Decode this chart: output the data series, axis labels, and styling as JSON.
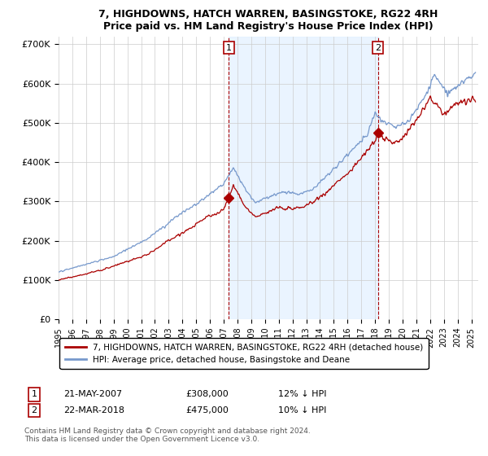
{
  "title": "7, HIGHDOWNS, HATCH WARREN, BASINGSTOKE, RG22 4RH",
  "subtitle": "Price paid vs. HM Land Registry's House Price Index (HPI)",
  "legend_line1": "7, HIGHDOWNS, HATCH WARREN, BASINGSTOKE, RG22 4RH (detached house)",
  "legend_line2": "HPI: Average price, detached house, Basingstoke and Deane",
  "footnote": "Contains HM Land Registry data © Crown copyright and database right 2024.\nThis data is licensed under the Open Government Licence v3.0.",
  "annotation1_date": "21-MAY-2007",
  "annotation1_price": "£308,000",
  "annotation1_hpi": "12% ↓ HPI",
  "annotation2_date": "22-MAR-2018",
  "annotation2_price": "£475,000",
  "annotation2_hpi": "10% ↓ HPI",
  "red_color": "#aa0000",
  "blue_color": "#7799cc",
  "blue_fill": "#ddeeff",
  "background_color": "#ffffff",
  "grid_color": "#cccccc",
  "ylim_min": 0,
  "ylim_max": 720000,
  "yticks": [
    0,
    100000,
    200000,
    300000,
    400000,
    500000,
    600000,
    700000
  ],
  "ytick_labels": [
    "£0",
    "£100K",
    "£200K",
    "£300K",
    "£400K",
    "£500K",
    "£600K",
    "£700K"
  ],
  "sale1_x": 2007.38,
  "sale1_y": 308000,
  "sale2_x": 2018.22,
  "sale2_y": 475000,
  "xmin": 1995,
  "xmax": 2025.5
}
